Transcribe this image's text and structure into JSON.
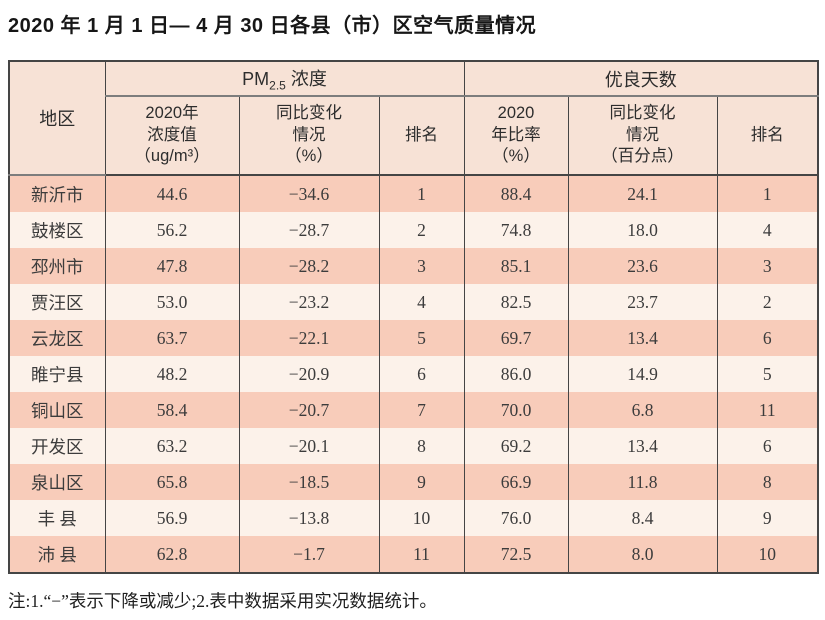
{
  "title": "2020 年 1 月 1 日— 4 月 30 日各县（市）区空气质量情况",
  "note": "注:1.“−”表示下降或减少;2.表中数据采用实况数据统计。",
  "colors": {
    "row_shaded": "#f8ccba",
    "row_plain": "#fcf2ea",
    "header_bg": "#f7e2d6",
    "border_dark": "#454545",
    "border_gray": "#7d7d7d",
    "text_main": "#3c3c3c"
  },
  "table": {
    "region_header": "地区",
    "group_pm": {
      "prefix": "PM",
      "sub": "2.5",
      "suffix": " 浓度"
    },
    "group_days": "优良天数",
    "sub_headers": {
      "pm_value": "2020年\n浓度值\n（ug/m³）",
      "pm_change": "同比变化\n情况\n（%）",
      "pm_rank": "排名",
      "days_rate": "2020\n年比率\n（%）",
      "days_change": "同比变化\n情况\n（百分点）",
      "days_rank": "排名"
    }
  },
  "chart_data": {
    "type": "table",
    "title": "2020年1月1日—4月30日各县（市）区空气质量情况",
    "column_groups": [
      "地区",
      "PM2.5浓度",
      "优良天数"
    ],
    "columns": [
      "地区",
      "PM2.5浓度 2020年浓度值（ug/m³）",
      "PM2.5浓度 同比变化情况（%）",
      "PM2.5浓度 排名",
      "优良天数 2020年比率（%）",
      "优良天数 同比变化情况（百分点）",
      "优良天数 排名"
    ],
    "rows": [
      [
        "新沂市",
        "44.6",
        "−34.6",
        "1",
        "88.4",
        "24.1",
        "1"
      ],
      [
        "鼓楼区",
        "56.2",
        "−28.7",
        "2",
        "74.8",
        "18.0",
        "4"
      ],
      [
        "邳州市",
        "47.8",
        "−28.2",
        "3",
        "85.1",
        "23.6",
        "3"
      ],
      [
        "贾汪区",
        "53.0",
        "−23.2",
        "4",
        "82.5",
        "23.7",
        "2"
      ],
      [
        "云龙区",
        "63.7",
        "−22.1",
        "5",
        "69.7",
        "13.4",
        "6"
      ],
      [
        "睢宁县",
        "48.2",
        "−20.9",
        "6",
        "86.0",
        "14.9",
        "5"
      ],
      [
        "铜山区",
        "58.4",
        "−20.7",
        "7",
        "70.0",
        "6.8",
        "11"
      ],
      [
        "开发区",
        "63.2",
        "−20.1",
        "8",
        "69.2",
        "13.4",
        "6"
      ],
      [
        "泉山区",
        "65.8",
        "−18.5",
        "9",
        "66.9",
        "11.8",
        "8"
      ],
      [
        "丰 县",
        "56.9",
        "−13.8",
        "10",
        "76.0",
        "8.4",
        "9"
      ],
      [
        "沛 县",
        "62.8",
        "−1.7",
        "11",
        "72.5",
        "8.0",
        "10"
      ]
    ],
    "notes": "注:1.“−”表示下降或减少;2.表中数据采用实况数据统计。"
  }
}
